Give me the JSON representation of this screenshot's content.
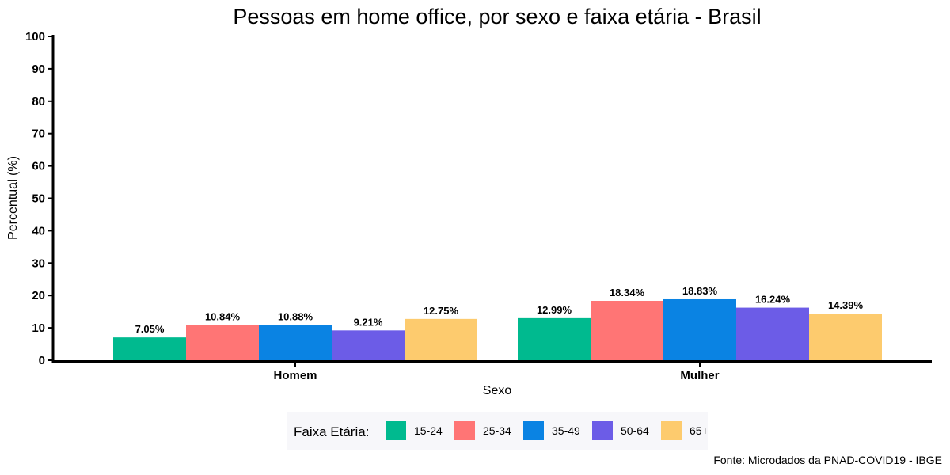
{
  "chart_data": {
    "type": "bar",
    "title": "Pessoas em home office, por sexo e faixa etária - Brasil",
    "xlabel": "Sexo",
    "ylabel": "Percentual (%)",
    "categories": [
      "Homem",
      "Mulher"
    ],
    "ylim": [
      0,
      100
    ],
    "yticks": [
      0,
      10,
      20,
      30,
      40,
      50,
      60,
      70,
      80,
      90,
      100
    ],
    "series": [
      {
        "name": "15-24",
        "values": [
          7.05,
          12.99
        ],
        "labels": [
          "7.05%",
          "12.99%"
        ],
        "color": "#00BA8F"
      },
      {
        "name": "25-34",
        "values": [
          10.84,
          18.34
        ],
        "labels": [
          "10.84%",
          "18.34%"
        ],
        "color": "#FF7575"
      },
      {
        "name": "35-49",
        "values": [
          10.88,
          18.83
        ],
        "labels": [
          "10.88%",
          "18.83%"
        ],
        "color": "#0A83E3"
      },
      {
        "name": "50-64",
        "values": [
          9.21,
          16.24
        ],
        "labels": [
          "9.21%",
          "16.24%"
        ],
        "color": "#6C5CE7"
      },
      {
        "name": "65+",
        "values": [
          12.75,
          14.39
        ],
        "labels": [
          "12.75%",
          "14.39%"
        ],
        "color": "#FDCB6E"
      }
    ],
    "legend": {
      "title": "Faixa Etária:",
      "position": "bottom"
    },
    "caption": "Fonte: Microdados da PNAD-COVID19 - IBGE",
    "grid": false
  }
}
